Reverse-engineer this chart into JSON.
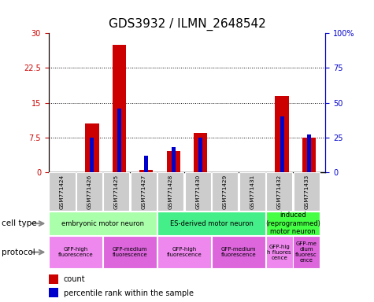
{
  "title": "GDS3932 / ILMN_2648542",
  "samples": [
    "GSM771424",
    "GSM771426",
    "GSM771425",
    "GSM771427",
    "GSM771428",
    "GSM771430",
    "GSM771429",
    "GSM771431",
    "GSM771432",
    "GSM771433"
  ],
  "count_values": [
    0,
    10.5,
    27.5,
    0.5,
    4.5,
    8.5,
    0,
    0,
    16.5,
    7.5
  ],
  "percentile_values": [
    0,
    25,
    46,
    12,
    18,
    25,
    0,
    0,
    40,
    27
  ],
  "ylim_left": [
    0,
    30
  ],
  "ylim_right": [
    0,
    100
  ],
  "yticks_left": [
    0,
    7.5,
    15,
    22.5,
    30
  ],
  "ytick_labels_left": [
    "0",
    "7.5",
    "15",
    "22.5",
    "30"
  ],
  "yticks_right": [
    0,
    25,
    50,
    75,
    100
  ],
  "ytick_labels_right": [
    "0",
    "25",
    "50",
    "75",
    "100%"
  ],
  "count_color": "#cc0000",
  "percentile_color": "#0000cc",
  "cell_type_groups": [
    {
      "label": "embryonic motor neuron",
      "start": 0,
      "end": 3,
      "color": "#aaffaa"
    },
    {
      "label": "ES-derived motor neuron",
      "start": 4,
      "end": 7,
      "color": "#44ee88"
    },
    {
      "label": "induced\n(reprogrammed)\nmotor neuron",
      "start": 8,
      "end": 9,
      "color": "#44ff44"
    }
  ],
  "protocol_groups": [
    {
      "label": "GFP-high\nfluorescence",
      "start": 0,
      "end": 1,
      "color": "#ee88ee"
    },
    {
      "label": "GFP-medium\nfluorescence",
      "start": 2,
      "end": 3,
      "color": "#dd66dd"
    },
    {
      "label": "GFP-high\nfluorescence",
      "start": 4,
      "end": 5,
      "color": "#ee88ee"
    },
    {
      "label": "GFP-medium\nfluorescence",
      "start": 6,
      "end": 7,
      "color": "#dd66dd"
    },
    {
      "label": "GFP-hig\nh fluores\ncence",
      "start": 8,
      "end": 8,
      "color": "#ee88ee"
    },
    {
      "label": "GFP-me\ndium\nfluoresc\nence",
      "start": 9,
      "end": 9,
      "color": "#dd66dd"
    }
  ],
  "cell_type_label": "cell type",
  "protocol_label": "protocol",
  "legend_count": "count",
  "legend_percentile": "percentile rank within the sample",
  "sample_bg_color": "#cccccc",
  "title_fontsize": 11,
  "tick_fontsize": 7,
  "bar_width": 0.5,
  "blue_bar_width": 0.15
}
